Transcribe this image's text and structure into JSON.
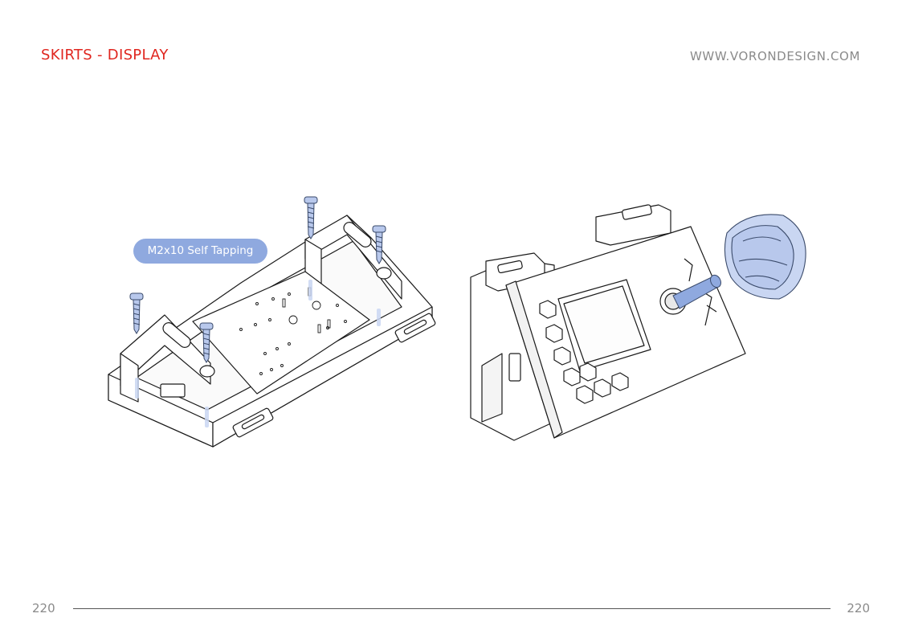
{
  "header": {
    "title": "SKIRTS - DISPLAY",
    "url": "WWW.VORONDESIGN.COM"
  },
  "callout": {
    "label": "M2x10 Self Tapping"
  },
  "footer": {
    "page_left": "220",
    "page_right": "220"
  },
  "colors": {
    "accent_red": "#e0261f",
    "hardware_blue": "#8fa9df",
    "text_gray": "#8a8a8a"
  }
}
